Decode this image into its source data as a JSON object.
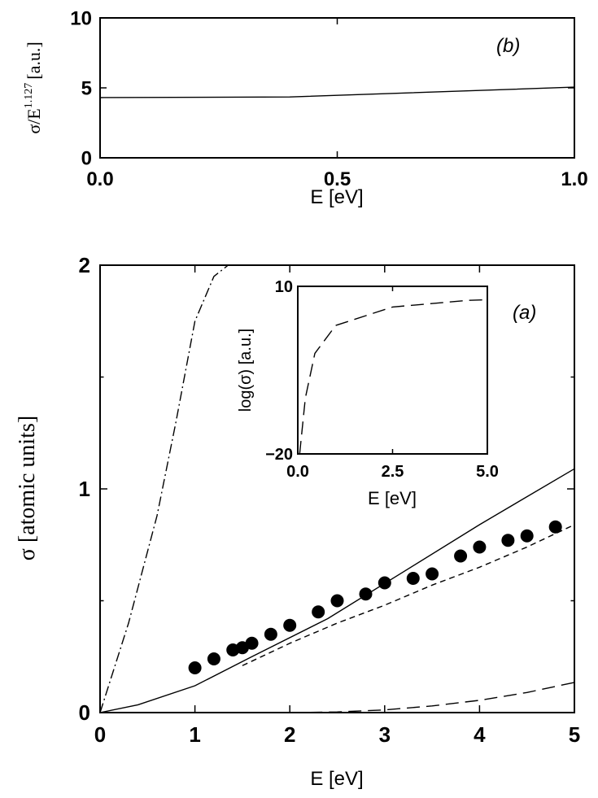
{
  "chart_data": [
    {
      "id": "b",
      "type": "line",
      "panel_label": "(b)",
      "xlabel": "E [eV]",
      "ylabel": "σ/E^1.127 [a.u.]",
      "ylabel_main": "σ/E",
      "ylabel_exp": "1.127",
      "ylabel_unit": "[a.u.]",
      "xlim": [
        0,
        1
      ],
      "ylim": [
        0,
        10
      ],
      "xticks": [
        0.0,
        0.5,
        1.0
      ],
      "xtick_labels": [
        "0.0",
        "0.5",
        "1.0"
      ],
      "yticks": [
        0,
        5,
        10
      ],
      "ytick_labels": [
        "0",
        "5",
        "10"
      ],
      "series": [
        {
          "style": "solid",
          "x": [
            0.0,
            0.4,
            1.0
          ],
          "y": [
            4.3,
            4.35,
            5.05
          ]
        }
      ]
    },
    {
      "id": "a",
      "type": "line",
      "panel_label": "(a)",
      "xlabel": "E [eV]",
      "ylabel": "σ [atomic units]",
      "xlim": [
        0,
        5
      ],
      "ylim": [
        0,
        2
      ],
      "xticks": [
        0,
        1,
        2,
        3,
        4,
        5
      ],
      "xtick_labels": [
        "0",
        "1",
        "2",
        "3",
        "4",
        "5"
      ],
      "yticks": [
        0,
        1,
        2
      ],
      "ytick_labels": [
        "0",
        "1",
        "2"
      ],
      "minor_yticks": [
        0.5,
        1.5
      ],
      "series": [
        {
          "style": "solid",
          "x": [
            0,
            0.4,
            1.0,
            1.6,
            2.4,
            3.2,
            4.0,
            4.4,
            5.0
          ],
          "y": [
            0,
            0.035,
            0.12,
            0.25,
            0.42,
            0.63,
            0.84,
            0.94,
            1.09
          ]
        },
        {
          "style": "dashed",
          "x": [
            1.5,
            2.0,
            2.5,
            3.0,
            3.5,
            4.0,
            4.5,
            5.0
          ],
          "y": [
            0.21,
            0.31,
            0.4,
            0.48,
            0.57,
            0.65,
            0.74,
            0.84
          ]
        },
        {
          "style": "dashdot",
          "x": [
            0.0,
            0.3,
            0.6,
            0.8,
            1.0,
            1.2,
            1.35
          ],
          "y": [
            0.0,
            0.4,
            0.88,
            1.3,
            1.75,
            1.95,
            2.0
          ]
        },
        {
          "style": "longdash",
          "x": [
            2.0,
            2.5,
            3.0,
            3.5,
            4.0,
            4.5,
            5.0
          ],
          "y": [
            0.0,
            0.003,
            0.012,
            0.03,
            0.055,
            0.09,
            0.135
          ]
        },
        {
          "style": "markers",
          "x": [
            1.0,
            1.2,
            1.4,
            1.5,
            1.6,
            1.8,
            2.0,
            2.3,
            2.5,
            2.8,
            3.0,
            3.3,
            3.5,
            3.8,
            4.0,
            4.3,
            4.5,
            4.8
          ],
          "y": [
            0.2,
            0.24,
            0.28,
            0.29,
            0.31,
            0.35,
            0.39,
            0.45,
            0.5,
            0.53,
            0.58,
            0.6,
            0.62,
            0.7,
            0.74,
            0.77,
            0.79,
            0.83
          ]
        }
      ],
      "inset": {
        "xlabel": "E [eV]",
        "ylabel": "log(σ) [a.u.]",
        "xlim": [
          0,
          5
        ],
        "ylim": [
          -20,
          10
        ],
        "xticks": [
          0.0,
          2.5,
          5.0
        ],
        "xtick_labels": [
          "0.0",
          "2.5",
          "5.0"
        ],
        "yticks": [
          -20,
          10
        ],
        "ytick_labels": [
          "−20",
          "10"
        ],
        "series": [
          {
            "style": "longdash",
            "x": [
              0.05,
              0.2,
              0.45,
              1.0,
              2.5,
              4.5,
              5.0
            ],
            "y": [
              -20,
              -10,
              -2,
              3,
              6.3,
              7.5,
              7.6
            ]
          }
        ]
      }
    }
  ]
}
